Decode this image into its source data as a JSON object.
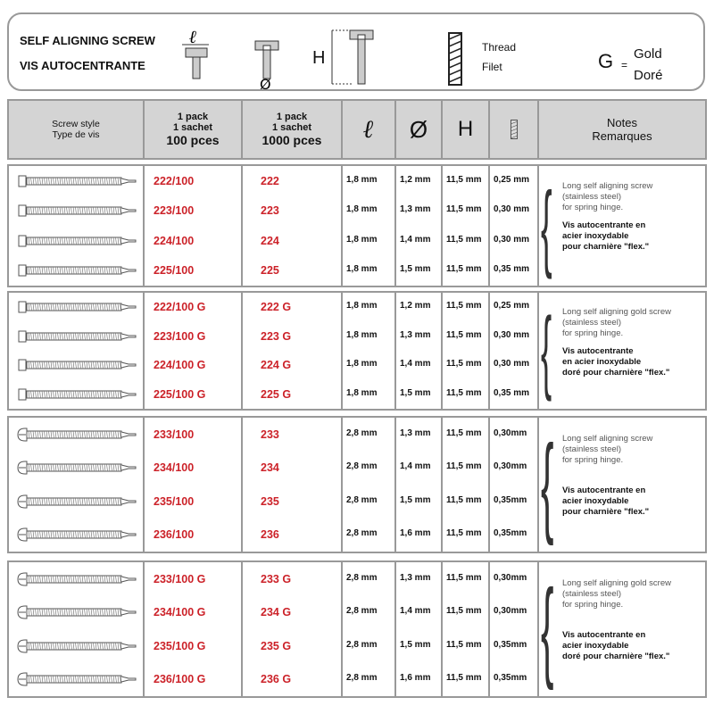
{
  "legend": {
    "title_en": "SELF ALIGNING SCREW",
    "title_fr": "VIS AUTOCENTRANTE",
    "length_symbol": "ℓ",
    "diameter_symbol": "Ø",
    "height_symbol": "H",
    "thread_en": "Thread",
    "thread_fr": "Filet",
    "gold_letter": "G",
    "equals": "=",
    "gold_en": "Gold",
    "gold_fr": "Doré"
  },
  "header": {
    "screw_style_en": "Screw style",
    "screw_style_fr": "Type de vis",
    "pack_line1": "1 pack",
    "pack_line2": "1 sachet",
    "pack100": "100 pces",
    "pack1000": "1000 pces",
    "length": "ℓ",
    "diameter": "Ø",
    "height": "H",
    "notes_en": "Notes",
    "notes_fr": "Remarques"
  },
  "colors": {
    "red": "#cc2229",
    "header_bg": "#d4d4d4",
    "border": "#999999"
  },
  "groups": [
    {
      "head": "cheese",
      "notes_en": [
        "Long self aligning screw",
        "(stainless steel)",
        "for spring hinge."
      ],
      "notes_fr": [
        "Vis autocentrante en",
        "acier inoxydable",
        "pour charnière \"flex.\""
      ],
      "rows": [
        [
          "222/100",
          "222",
          "1,8 mm",
          "1,2 mm",
          "11,5 mm",
          "0,25 mm"
        ],
        [
          "223/100",
          "223",
          "1,8 mm",
          "1,3 mm",
          "11,5 mm",
          "0,30 mm"
        ],
        [
          "224/100",
          "224",
          "1,8 mm",
          "1,4 mm",
          "11,5 mm",
          "0,30 mm"
        ],
        [
          "225/100",
          "225",
          "1,8 mm",
          "1,5 mm",
          "11,5 mm",
          "0,35 mm"
        ]
      ]
    },
    {
      "head": "cheese",
      "notes_en": [
        "Long self aligning gold screw",
        "(stainless steel)",
        "for spring hinge."
      ],
      "notes_fr": [
        "Vis autocentrante",
        "en acier inoxydable",
        "doré pour charnière \"flex.\""
      ],
      "rows": [
        [
          "222/100 G",
          "222 G",
          "1,8 mm",
          "1,2 mm",
          "11,5 mm",
          "0,25 mm"
        ],
        [
          "223/100 G",
          "223 G",
          "1,8 mm",
          "1,3 mm",
          "11,5 mm",
          "0,30 mm"
        ],
        [
          "224/100 G",
          "224 G",
          "1,8 mm",
          "1,4 mm",
          "11,5 mm",
          "0,30 mm"
        ],
        [
          "225/100 G",
          "225 G",
          "1,8 mm",
          "1,5 mm",
          "11,5 mm",
          "0,35 mm"
        ]
      ]
    },
    {
      "head": "round",
      "notes_en": [
        "Long self aligning screw",
        "(stainless steel)",
        "for spring hinge."
      ],
      "notes_fr": [
        "Vis autocentrante en",
        "acier inoxydable",
        "pour charnière \"flex.\""
      ],
      "rows": [
        [
          "233/100",
          "233",
          "2,8 mm",
          "1,3 mm",
          "11,5 mm",
          "0,30mm"
        ],
        [
          "234/100",
          "234",
          "2,8 mm",
          "1,4 mm",
          "11,5 mm",
          "0,30mm"
        ],
        [
          "235/100",
          "235",
          "2,8 mm",
          "1,5 mm",
          "11,5 mm",
          "0,35mm"
        ],
        [
          "236/100",
          "236",
          "2,8 mm",
          "1,6 mm",
          "11,5 mm",
          "0,35mm"
        ]
      ]
    },
    {
      "head": "round",
      "notes_en": [
        "Long self aligning gold screw",
        "(stainless steel)",
        "for spring hinge."
      ],
      "notes_fr": [
        "Vis autocentrante en",
        "acier inoxydable",
        "doré pour charnière \"flex.\""
      ],
      "rows": [
        [
          "233/100 G",
          "233 G",
          "2,8 mm",
          "1,3 mm",
          "11,5 mm",
          "0,30mm"
        ],
        [
          "234/100 G",
          "234 G",
          "2,8 mm",
          "1,4 mm",
          "11,5 mm",
          "0,30mm"
        ],
        [
          "235/100 G",
          "235 G",
          "2,8 mm",
          "1,5 mm",
          "11,5 mm",
          "0,35mm"
        ],
        [
          "236/100 G",
          "236 G",
          "2,8 mm",
          "1,6 mm",
          "11,5 mm",
          "0,35mm"
        ]
      ]
    }
  ]
}
